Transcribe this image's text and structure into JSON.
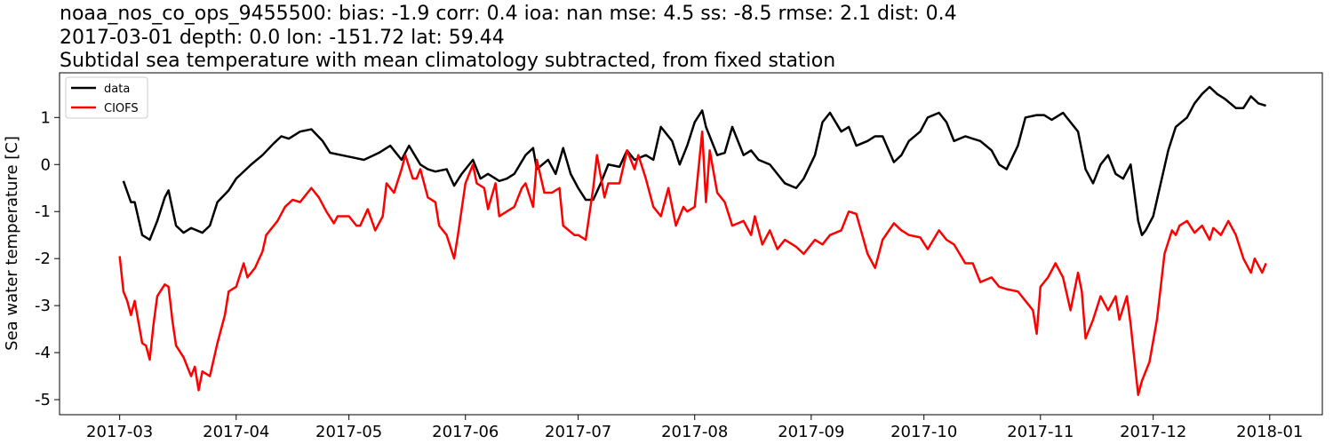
{
  "chart_data": {
    "type": "line",
    "title": [
      "noaa_nos_co_ops_9455500: bias: -1.9  corr: 0.4  ioa: nan  mse: 4.5  ss: -8.5  rmse: 2.1  dist: 0.4",
      "2017-03-01 depth: 0.0 lon: -151.72 lat: 59.44",
      "Subtidal sea temperature with mean climatology subtracted, from fixed station"
    ],
    "y_label": "Sea water temperature [C]",
    "xlim": [
      "2017-02-13",
      "2018-01-15"
    ],
    "xticks": [
      {
        "value": "2017-03-01",
        "label": "2017-03"
      },
      {
        "value": "2017-04-01",
        "label": "2017-04"
      },
      {
        "value": "2017-05-01",
        "label": "2017-05"
      },
      {
        "value": "2017-06-01",
        "label": "2017-06"
      },
      {
        "value": "2017-07-01",
        "label": "2017-07"
      },
      {
        "value": "2017-08-01",
        "label": "2017-08"
      },
      {
        "value": "2017-09-01",
        "label": "2017-09"
      },
      {
        "value": "2017-10-01",
        "label": "2017-10"
      },
      {
        "value": "2017-11-01",
        "label": "2017-11"
      },
      {
        "value": "2017-12-01",
        "label": "2017-12"
      },
      {
        "value": "2018-01-01",
        "label": "2018-01"
      }
    ],
    "ylim": [
      -5.32,
      1.95
    ],
    "yticks": [
      -5,
      -4,
      -3,
      -2,
      -1,
      0,
      1
    ],
    "grid": false,
    "legend": "upper left",
    "series": [
      {
        "name": "data",
        "color": "#000000",
        "x": [
          "2017-03-02",
          "2017-03-04",
          "2017-03-05",
          "2017-03-07",
          "2017-03-09",
          "2017-03-11",
          "2017-03-13",
          "2017-03-14",
          "2017-03-16",
          "2017-03-18",
          "2017-03-20",
          "2017-03-23",
          "2017-03-25",
          "2017-03-27",
          "2017-03-30",
          "2017-04-01",
          "2017-04-05",
          "2017-04-08",
          "2017-04-11",
          "2017-04-13",
          "2017-04-15",
          "2017-04-18",
          "2017-04-21",
          "2017-04-24",
          "2017-04-26",
          "2017-04-29",
          "2017-05-02",
          "2017-05-05",
          "2017-05-09",
          "2017-05-12",
          "2017-05-15",
          "2017-05-17",
          "2017-05-20",
          "2017-05-22",
          "2017-05-24",
          "2017-05-27",
          "2017-05-29",
          "2017-05-31",
          "2017-06-03",
          "2017-06-05",
          "2017-06-07",
          "2017-06-10",
          "2017-06-12",
          "2017-06-14",
          "2017-06-17",
          "2017-06-19",
          "2017-06-20",
          "2017-06-23",
          "2017-06-25",
          "2017-06-27",
          "2017-06-29",
          "2017-07-01",
          "2017-07-03",
          "2017-07-05",
          "2017-07-07",
          "2017-07-09",
          "2017-07-12",
          "2017-07-14",
          "2017-07-16",
          "2017-07-19",
          "2017-07-21",
          "2017-07-23",
          "2017-07-26",
          "2017-07-28",
          "2017-07-30",
          "2017-08-01",
          "2017-08-03",
          "2017-08-04",
          "2017-08-07",
          "2017-08-09",
          "2017-08-11",
          "2017-08-14",
          "2017-08-16",
          "2017-08-18",
          "2017-08-21",
          "2017-08-23",
          "2017-08-25",
          "2017-08-28",
          "2017-08-30",
          "2017-09-02",
          "2017-09-04",
          "2017-09-06",
          "2017-09-09",
          "2017-09-11",
          "2017-09-13",
          "2017-09-16",
          "2017-09-18",
          "2017-09-20",
          "2017-09-23",
          "2017-09-25",
          "2017-09-27",
          "2017-09-30",
          "2017-10-02",
          "2017-10-05",
          "2017-10-07",
          "2017-10-09",
          "2017-10-12",
          "2017-10-14",
          "2017-10-16",
          "2017-10-19",
          "2017-10-21",
          "2017-10-23",
          "2017-10-26",
          "2017-10-28",
          "2017-10-31",
          "2017-11-02",
          "2017-11-04",
          "2017-11-07",
          "2017-11-09",
          "2017-11-11",
          "2017-11-13",
          "2017-11-15",
          "2017-11-17",
          "2017-11-19",
          "2017-11-21",
          "2017-11-23",
          "2017-11-25",
          "2017-11-27",
          "2017-11-28",
          "2017-11-29",
          "2017-12-01",
          "2017-12-03",
          "2017-12-05",
          "2017-12-07",
          "2017-12-10",
          "2017-12-12",
          "2017-12-14",
          "2017-12-16",
          "2017-12-18",
          "2017-12-20",
          "2017-12-23",
          "2017-12-25",
          "2017-12-27",
          "2017-12-29",
          "2017-12-31"
        ],
        "values": [
          -0.35,
          -0.8,
          -0.8,
          -1.5,
          -1.6,
          -1.2,
          -0.7,
          -0.55,
          -1.3,
          -1.45,
          -1.35,
          -1.45,
          -1.3,
          -0.8,
          -0.55,
          -0.3,
          0.0,
          0.2,
          0.45,
          0.6,
          0.55,
          0.7,
          0.75,
          0.5,
          0.25,
          0.2,
          0.15,
          0.1,
          0.25,
          0.4,
          0.1,
          0.4,
          0.0,
          -0.1,
          -0.15,
          -0.1,
          -0.45,
          -0.2,
          0.1,
          -0.3,
          -0.2,
          -0.35,
          -0.3,
          -0.2,
          0.2,
          0.35,
          -0.1,
          0.1,
          -0.2,
          0.35,
          -0.2,
          -0.5,
          -0.75,
          -0.75,
          -0.4,
          0.0,
          -0.05,
          0.3,
          0.1,
          0.2,
          0.1,
          0.8,
          0.5,
          0.0,
          0.4,
          0.9,
          1.15,
          0.8,
          0.2,
          0.25,
          0.8,
          0.2,
          0.3,
          0.1,
          0.0,
          -0.2,
          -0.4,
          -0.5,
          -0.3,
          0.2,
          0.9,
          1.1,
          0.7,
          0.8,
          0.4,
          0.5,
          0.6,
          0.6,
          0.05,
          0.2,
          0.5,
          0.7,
          1.0,
          1.1,
          0.9,
          0.5,
          0.6,
          0.55,
          0.5,
          0.3,
          0.0,
          -0.1,
          0.4,
          1.0,
          1.05,
          1.05,
          0.95,
          1.1,
          0.9,
          0.7,
          -0.1,
          -0.4,
          0.0,
          0.2,
          -0.2,
          -0.3,
          0.0,
          -1.2,
          -1.5,
          -1.4,
          -1.1,
          -0.4,
          0.3,
          0.8,
          1.0,
          1.3,
          1.5,
          1.65,
          1.5,
          1.4,
          1.2,
          1.2,
          1.45,
          1.3,
          1.25
        ]
      },
      {
        "name": "CIOFS",
        "color": "#ff0000",
        "x": [
          "2017-03-01",
          "2017-03-02",
          "2017-03-03",
          "2017-03-04",
          "2017-03-05",
          "2017-03-07",
          "2017-03-08",
          "2017-03-09",
          "2017-03-10",
          "2017-03-11",
          "2017-03-13",
          "2017-03-14",
          "2017-03-15",
          "2017-03-16",
          "2017-03-18",
          "2017-03-20",
          "2017-03-21",
          "2017-03-22",
          "2017-03-23",
          "2017-03-25",
          "2017-03-27",
          "2017-03-29",
          "2017-03-30",
          "2017-04-01",
          "2017-04-03",
          "2017-04-04",
          "2017-04-06",
          "2017-04-08",
          "2017-04-09",
          "2017-04-12",
          "2017-04-14",
          "2017-04-16",
          "2017-04-18",
          "2017-04-19",
          "2017-04-21",
          "2017-04-23",
          "2017-04-25",
          "2017-04-27",
          "2017-04-28",
          "2017-05-01",
          "2017-05-03",
          "2017-05-04",
          "2017-05-06",
          "2017-05-08",
          "2017-05-10",
          "2017-05-11",
          "2017-05-13",
          "2017-05-15",
          "2017-05-16",
          "2017-05-18",
          "2017-05-19",
          "2017-05-20",
          "2017-05-22",
          "2017-05-24",
          "2017-05-25",
          "2017-05-27",
          "2017-05-29",
          "2017-05-30",
          "2017-06-01",
          "2017-06-03",
          "2017-06-04",
          "2017-06-06",
          "2017-06-07",
          "2017-06-09",
          "2017-06-10",
          "2017-06-12",
          "2017-06-14",
          "2017-06-16",
          "2017-06-17",
          "2017-06-19",
          "2017-06-20",
          "2017-06-22",
          "2017-06-24",
          "2017-06-26",
          "2017-06-27",
          "2017-06-30",
          "2017-07-01",
          "2017-07-03",
          "2017-07-05",
          "2017-07-06",
          "2017-07-08",
          "2017-07-09",
          "2017-07-12",
          "2017-07-14",
          "2017-07-16",
          "2017-07-17",
          "2017-07-19",
          "2017-07-21",
          "2017-07-23",
          "2017-07-25",
          "2017-07-27",
          "2017-07-29",
          "2017-07-30",
          "2017-08-01",
          "2017-08-03",
          "2017-08-04",
          "2017-08-05",
          "2017-08-07",
          "2017-08-09",
          "2017-08-11",
          "2017-08-14",
          "2017-08-16",
          "2017-08-17",
          "2017-08-19",
          "2017-08-21",
          "2017-08-23",
          "2017-08-25",
          "2017-08-28",
          "2017-08-30",
          "2017-09-02",
          "2017-09-04",
          "2017-09-06",
          "2017-09-09",
          "2017-09-11",
          "2017-09-13",
          "2017-09-16",
          "2017-09-18",
          "2017-09-20",
          "2017-09-23",
          "2017-09-25",
          "2017-09-27",
          "2017-09-30",
          "2017-10-02",
          "2017-10-05",
          "2017-10-07",
          "2017-10-09",
          "2017-10-12",
          "2017-10-14",
          "2017-10-16",
          "2017-10-19",
          "2017-10-21",
          "2017-10-23",
          "2017-10-26",
          "2017-10-28",
          "2017-10-30",
          "2017-10-31",
          "2017-11-01",
          "2017-11-03",
          "2017-11-05",
          "2017-11-07",
          "2017-11-09",
          "2017-11-11",
          "2017-11-12",
          "2017-11-13",
          "2017-11-15",
          "2017-11-17",
          "2017-11-19",
          "2017-11-21",
          "2017-11-22",
          "2017-11-24",
          "2017-11-25",
          "2017-11-27",
          "2017-11-28",
          "2017-11-30",
          "2017-12-02",
          "2017-12-04",
          "2017-12-06",
          "2017-12-07",
          "2017-12-08",
          "2017-12-10",
          "2017-12-12",
          "2017-12-14",
          "2017-12-16",
          "2017-12-17",
          "2017-12-19",
          "2017-12-21",
          "2017-12-23",
          "2017-12-25",
          "2017-12-27",
          "2017-12-28",
          "2017-12-30",
          "2017-12-31"
        ],
        "values": [
          -1.95,
          -2.7,
          -2.9,
          -3.2,
          -2.9,
          -3.8,
          -3.85,
          -4.15,
          -3.4,
          -2.8,
          -2.55,
          -2.6,
          -3.3,
          -3.85,
          -4.1,
          -4.5,
          -4.3,
          -4.8,
          -4.4,
          -4.5,
          -3.8,
          -3.2,
          -2.7,
          -2.6,
          -2.1,
          -2.4,
          -2.2,
          -1.85,
          -1.5,
          -1.2,
          -0.9,
          -0.75,
          -0.8,
          -0.7,
          -0.5,
          -0.7,
          -1.0,
          -1.25,
          -1.1,
          -1.1,
          -1.3,
          -1.3,
          -0.95,
          -1.4,
          -1.1,
          -0.4,
          -0.6,
          -0.1,
          0.2,
          -0.3,
          -0.3,
          -0.1,
          -0.7,
          -0.8,
          -1.3,
          -1.5,
          -2.0,
          -1.5,
          -0.4,
          0.0,
          -0.4,
          -0.5,
          -0.95,
          -0.4,
          -1.1,
          -1.0,
          -0.9,
          -0.5,
          -0.4,
          -0.9,
          0.1,
          -0.6,
          -0.6,
          -0.5,
          -1.3,
          -1.5,
          -1.5,
          -1.6,
          -0.5,
          0.2,
          -0.7,
          -0.4,
          -0.4,
          0.3,
          -0.1,
          0.2,
          -0.3,
          -0.9,
          -1.1,
          -0.5,
          -1.3,
          -0.9,
          -1.0,
          -0.9,
          0.7,
          -0.8,
          0.3,
          -0.6,
          -0.8,
          -1.3,
          -1.2,
          -1.5,
          -1.1,
          -1.7,
          -1.4,
          -1.8,
          -1.6,
          -1.75,
          -1.9,
          -1.6,
          -1.7,
          -1.5,
          -1.4,
          -1.0,
          -1.05,
          -1.9,
          -2.2,
          -1.6,
          -1.25,
          -1.4,
          -1.5,
          -1.55,
          -1.8,
          -1.4,
          -1.6,
          -1.7,
          -2.1,
          -2.1,
          -2.5,
          -2.4,
          -2.6,
          -2.65,
          -2.7,
          -2.9,
          -3.1,
          -3.6,
          -2.6,
          -2.4,
          -2.1,
          -2.4,
          -3.1,
          -2.3,
          -2.7,
          -3.7,
          -3.3,
          -2.8,
          -3.1,
          -2.8,
          -3.3,
          -2.8,
          -3.4,
          -4.9,
          -4.6,
          -4.2,
          -3.3,
          -1.9,
          -1.4,
          -1.5,
          -1.3,
          -1.2,
          -1.45,
          -1.3,
          -1.6,
          -1.35,
          -1.5,
          -1.2,
          -1.5,
          -2.0,
          -2.3,
          -2.0,
          -2.3,
          -2.1
        ]
      }
    ]
  }
}
